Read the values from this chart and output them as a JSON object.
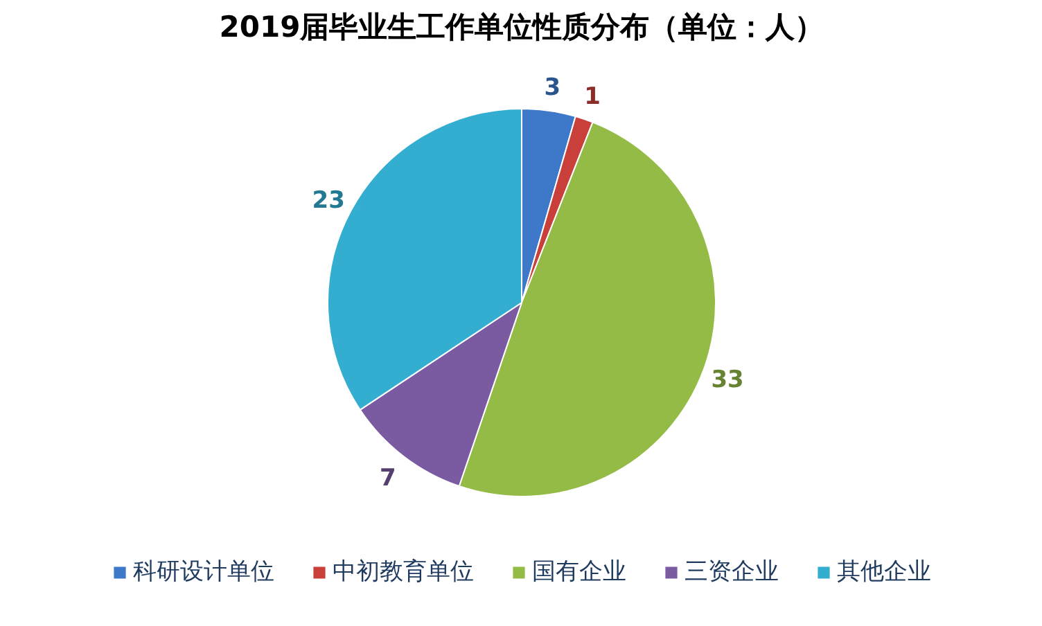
{
  "chart_data": {
    "type": "pie",
    "title": "2019届毕业生工作单位性质分布（单位：人）",
    "categories": [
      "科研设计单位",
      "中初教育单位",
      "国有企业",
      "三资企业",
      "其他企业"
    ],
    "values": [
      3,
      1,
      33,
      7,
      23
    ],
    "colors": [
      "#3d78c9",
      "#c9403a",
      "#94bb46",
      "#7a5aa0",
      "#33aed0"
    ],
    "data_labels": true,
    "legend": "bottom"
  }
}
